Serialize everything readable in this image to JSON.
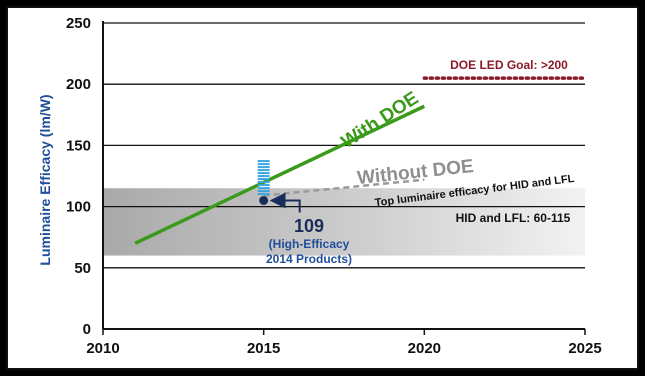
{
  "chart_data": {
    "type": "line",
    "ylabel": "Luminaire Efficacy (lm/W)",
    "xlabel": "",
    "xlim": [
      2010,
      2025
    ],
    "ylim": [
      0,
      250
    ],
    "x_ticks": [
      2010,
      2015,
      2020,
      2025
    ],
    "y_ticks": [
      0,
      50,
      100,
      150,
      200,
      250
    ],
    "grid": "horizontal",
    "bands": [
      {
        "name": "HID and LFL: 60-115",
        "y_low": 60,
        "y_high": 115,
        "color": "#c8c8c8"
      }
    ],
    "series": [
      {
        "name": "With DOE",
        "style": "solid",
        "color": "#3a9a1a",
        "x": [
          2011,
          2020
        ],
        "y": [
          70,
          182
        ]
      },
      {
        "name": "Without DOE",
        "style": "dashed",
        "color": "#9a9a9a",
        "x": [
          2015,
          2020
        ],
        "y": [
          109,
          122
        ]
      }
    ],
    "reference_lines": [
      {
        "name": "DOE LED Goal: >200",
        "y": 205,
        "x_from": 2020,
        "x_to": 2025,
        "style": "dotted",
        "color": "#8b1a2a"
      }
    ],
    "points": [
      {
        "x": 2015,
        "y": 105,
        "color": "#1a2d5a"
      }
    ],
    "range_bar": {
      "x": 2015,
      "y_low": 109,
      "y_high": 138,
      "color": "#3aa6e0"
    },
    "annotations": {
      "with_doe": "With DOE",
      "without_doe": "Without DOE",
      "top_luminaire": "Top luminaire efficacy for HID and LFL",
      "hid_lfl": "HID and LFL: 60-115",
      "doe_goal": "DOE LED Goal: >200",
      "value_109": "109",
      "high_eff_1": "(High-Efficacy",
      "high_eff_2": "2014 Products)"
    }
  }
}
